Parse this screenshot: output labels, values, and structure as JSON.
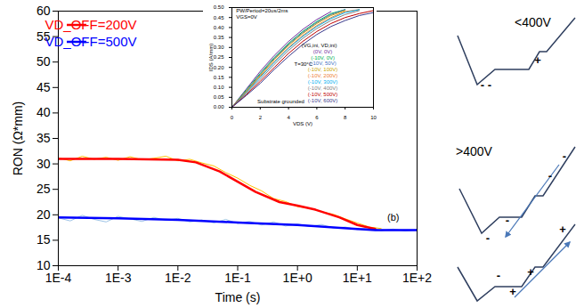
{
  "chart_data": [
    {
      "type": "line",
      "x_label": "Time (s)",
      "y_label": "RON (Ω*mm)",
      "log": "x",
      "grid": false,
      "legend": "top-left",
      "xlim": [
        0.0001,
        100
      ],
      "xticks": [
        {
          "value": 0.0001,
          "label": "1E-4"
        },
        {
          "value": 0.001,
          "label": "1E-3"
        },
        {
          "value": 0.01,
          "label": "1E-2"
        },
        {
          "value": 0.1,
          "label": "1E-1"
        },
        {
          "value": 1,
          "label": "1E+0"
        },
        {
          "value": 10,
          "label": "1E+1"
        },
        {
          "value": 100,
          "label": "1E+2"
        }
      ],
      "ylim": [
        10,
        60
      ],
      "yticks": [
        10,
        15,
        20,
        25,
        30,
        35,
        40,
        45,
        50,
        55,
        60
      ],
      "series": [
        {
          "color": "#ffc000",
          "x": [
            0.0001,
            0.000158,
            0.000251,
            0.000398,
            0.000631,
            0.001,
            0.00158,
            0.00251,
            0.00398,
            0.00631,
            0.01,
            0.0158,
            0.0251,
            0.0398,
            0.0631,
            0.1,
            0.158,
            0.251,
            0.398,
            0.631,
            1,
            1.58,
            2.51,
            3.98,
            6.31,
            10,
            15.8,
            25.1
          ],
          "values": [
            31.2,
            30.6,
            31.5,
            30.9,
            31.3,
            30.7,
            31.4,
            30.8,
            31.1,
            31.5,
            30.6,
            30.9,
            30.2,
            29.6,
            28.3,
            27.2,
            25.8,
            24.7,
            23.2,
            22.6,
            21.6,
            21.3,
            20.6,
            20.1,
            19.2,
            18.4,
            17.6,
            17.3
          ]
        },
        {
          "color": "#9dc3e6",
          "x": [
            0.0001,
            0.000158,
            0.000251,
            0.000398,
            0.000631,
            0.001,
            0.00158,
            0.00251,
            0.00398,
            0.00631,
            0.01,
            0.0158,
            0.0251,
            0.0398,
            0.0631,
            0.1,
            0.158,
            0.251,
            0.398,
            0.631,
            1,
            1.58,
            2.51,
            3.98,
            6.31,
            10,
            15.8,
            25.1,
            39.8,
            63.1,
            100
          ],
          "values": [
            19.4,
            18.8,
            19.9,
            19.1,
            18.6,
            19.7,
            19.2,
            18.7,
            19.5,
            18.9,
            19.3,
            18.6,
            19.0,
            18.4,
            19.1,
            18.3,
            18.7,
            18.0,
            18.6,
            17.8,
            18.2,
            17.7,
            18.1,
            17.4,
            17.6,
            17.1,
            17.5,
            16.9,
            17.2,
            16.8,
            17.1
          ]
        },
        {
          "name": "VD_OFF=200V",
          "color": "#ff0000",
          "x": [
            0.0001,
            0.001,
            0.01,
            0.02,
            0.05,
            0.1,
            0.2,
            0.5,
            1,
            2,
            5,
            10,
            20
          ],
          "values": [
            31,
            31,
            30.8,
            30.3,
            28.5,
            26.5,
            24.5,
            22.5,
            21.8,
            21,
            19.5,
            18,
            17.2
          ]
        },
        {
          "name": "VD_OFF=500V",
          "color": "#0000ff",
          "x": [
            0.0001,
            0.001,
            0.01,
            0.1,
            1,
            10,
            20,
            100
          ],
          "values": [
            19.5,
            19.3,
            19,
            18.5,
            18,
            17.2,
            17,
            17
          ]
        }
      ],
      "annotations": [
        {
          "text": "(b)",
          "x": 40,
          "y": 19.5
        }
      ]
    },
    {
      "type": "line",
      "x_label": "VDS (V)",
      "y_label": "IDS (A/mm)",
      "grid": false,
      "legend": "right",
      "legend_title": "(VG,ini, VD,ini)",
      "xlim": [
        0,
        10
      ],
      "xticks": [
        0,
        2,
        4,
        6,
        8,
        10
      ],
      "ylim": [
        0,
        0.5
      ],
      "yticks": [
        {
          "value": 0,
          "label": "0.00"
        },
        {
          "value": 0.05,
          "label": "0.05"
        },
        {
          "value": 0.1,
          "label": "0.10"
        },
        {
          "value": 0.15,
          "label": "0.15"
        },
        {
          "value": 0.2,
          "label": "0.20"
        },
        {
          "value": 0.25,
          "label": "0.25"
        },
        {
          "value": 0.3,
          "label": "0.30"
        },
        {
          "value": 0.35,
          "label": "0.35"
        },
        {
          "value": 0.4,
          "label": "0.40"
        },
        {
          "value": 0.45,
          "label": "0.45"
        },
        {
          "value": 0.5,
          "label": "0.50"
        }
      ],
      "x": [
        0,
        1,
        2,
        3,
        4,
        5,
        6,
        7,
        8,
        9,
        10
      ],
      "series": [
        {
          "name": "(0V, 0V)",
          "color": "#7030a0",
          "values": [
            0,
            0.09,
            0.18,
            0.26,
            0.33,
            0.39,
            0.44,
            0.48,
            null,
            null,
            null
          ]
        },
        {
          "name": "(-10V, 0V)",
          "color": "#00b050",
          "values": [
            0,
            0.085,
            0.17,
            0.25,
            0.32,
            0.38,
            0.43,
            0.47,
            0.49,
            null,
            null
          ]
        },
        {
          "name": "(-10V, 50V)",
          "color": "#4472c4",
          "values": [
            0,
            0.08,
            0.165,
            0.245,
            0.315,
            0.375,
            0.425,
            0.465,
            0.49,
            null,
            null
          ]
        },
        {
          "name": "(-10V, 100V)",
          "color": "#c9a400",
          "values": [
            0,
            0.078,
            0.16,
            0.24,
            0.31,
            0.37,
            0.42,
            0.46,
            0.485,
            null,
            null
          ]
        },
        {
          "name": "(-10V, 200V)",
          "color": "#ed7d31",
          "values": [
            0,
            0.075,
            0.155,
            0.23,
            0.3,
            0.36,
            0.41,
            0.45,
            0.48,
            0.49,
            null
          ]
        },
        {
          "name": "(-10V, 300V)",
          "color": "#00b0f0",
          "values": [
            0,
            0.072,
            0.15,
            0.225,
            0.295,
            0.355,
            0.405,
            0.445,
            0.475,
            0.49,
            null
          ]
        },
        {
          "name": "(-10V, 400V)",
          "color": "#7f7f7f",
          "values": [
            0,
            0.068,
            0.14,
            0.215,
            0.285,
            0.345,
            0.395,
            0.435,
            0.465,
            0.485,
            null
          ]
        },
        {
          "name": "(-10V, 500V)",
          "color": "#c00000",
          "values": [
            0,
            0.062,
            0.13,
            0.2,
            0.27,
            0.33,
            0.38,
            0.42,
            0.45,
            0.47,
            0.485
          ]
        },
        {
          "name": "(-10V, 600V)",
          "color": "#3a3a8c",
          "values": [
            0,
            0.058,
            0.12,
            0.19,
            0.255,
            0.315,
            0.365,
            0.405,
            0.435,
            0.46,
            0.475
          ]
        }
      ],
      "annotations": [
        {
          "text": "PW/Period=20us/2ms",
          "x": 0.3,
          "y": 0.485
        },
        {
          "text": "VGS=0V",
          "x": 0.3,
          "y": 0.455
        },
        {
          "text": "T=30°C",
          "x": 4.4,
          "y": 0.215
        },
        {
          "text": "Substrate grounded",
          "x": 1.8,
          "y": 0.03
        }
      ]
    }
  ],
  "diagram": {
    "panels": [
      {
        "label": "<400V",
        "charges": [
          "+",
          "- -"
        ]
      },
      {
        "label": ">400V",
        "charges": [
          "-",
          "-",
          "-",
          "-",
          "-",
          "+",
          "+",
          "+"
        ]
      }
    ]
  }
}
